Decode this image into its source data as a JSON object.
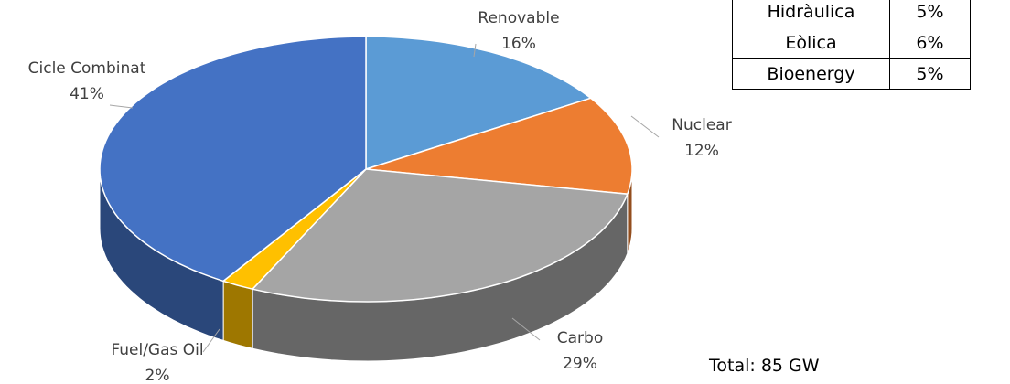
{
  "chart_data": {
    "type": "pie",
    "categories": [
      "Renovable",
      "Nuclear",
      "Carbo",
      "Fuel/Gas Oil",
      "Cicle Combinat"
    ],
    "values": [
      16,
      12,
      29,
      2,
      41
    ],
    "value_labels": [
      "16%",
      "12%",
      "29%",
      "2%",
      "41%"
    ],
    "colors": [
      "#5b9bd5",
      "#ed7d31",
      "#a5a5a5",
      "#ffc000",
      "#4472c4"
    ]
  },
  "table": {
    "rows": [
      [
        "Hidràulica",
        "5%"
      ],
      [
        "Eòlica",
        "6%"
      ],
      [
        "Bioenergy",
        "5%"
      ]
    ]
  },
  "total": "Total: 85 GW"
}
